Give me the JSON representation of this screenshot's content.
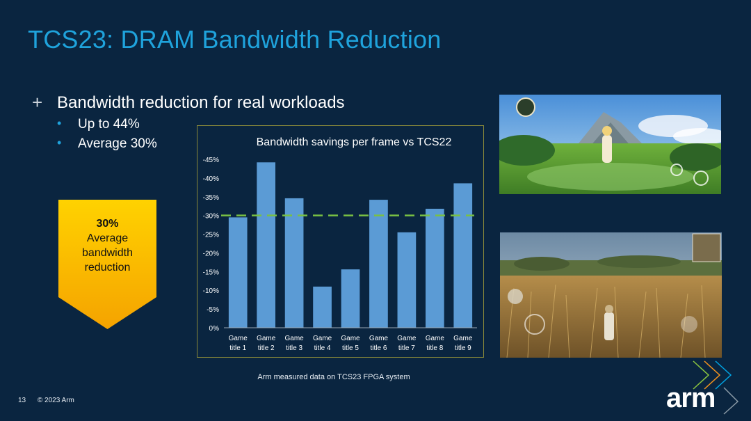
{
  "slide": {
    "title": "TCS23: DRAM Bandwidth Reduction",
    "bullet_main": "Bandwidth reduction for real workloads",
    "sub_bullets": [
      "Up to 44%",
      "Average 30%"
    ],
    "bullet_marker": "plus-cross-icon",
    "footnote": "Arm measured data on TCS23 FPGA system",
    "page_number": "13",
    "copyright": "© 2023 Arm",
    "logo_text": "arm"
  },
  "callout": {
    "value": "30%",
    "lines": [
      "Average",
      "bandwidth",
      "reduction"
    ],
    "color_top": "#ffd200",
    "color_bottom": "#f5a300"
  },
  "colors": {
    "background": "#0a2540",
    "title": "#1fa3dc",
    "bar": "#5b9bd5",
    "average_line": "#7ac143"
  },
  "chart_data": {
    "type": "bar",
    "title": "Bandwidth savings per frame vs TCS22",
    "categories": [
      [
        "Game",
        "title 1"
      ],
      [
        "Game",
        "title 2"
      ],
      [
        "Game",
        "title 3"
      ],
      [
        "Game",
        "title 4"
      ],
      [
        "Game",
        "title 5"
      ],
      [
        "Game",
        "title 6"
      ],
      [
        "Game",
        "title 7"
      ],
      [
        "Game",
        "title 8"
      ],
      [
        "Game",
        "title 9"
      ]
    ],
    "values": [
      -29.5,
      -44.2,
      -34.6,
      -11.0,
      -15.6,
      -34.2,
      -25.5,
      -31.8,
      -38.6
    ],
    "ylim": [
      0,
      -45
    ],
    "yticks": [
      0,
      -5,
      -10,
      -15,
      -20,
      -25,
      -30,
      -35,
      -40,
      -45
    ],
    "ytick_labels": [
      "0%",
      "-5%",
      "-10%",
      "-15%",
      "-20%",
      "-25%",
      "-30%",
      "-35%",
      "-40%",
      "-45%"
    ],
    "average_line": -30,
    "grid": false,
    "legend": "none"
  },
  "screenshots": [
    {
      "name": "game-screenshot-open-world"
    },
    {
      "name": "game-screenshot-wheat-field"
    }
  ]
}
